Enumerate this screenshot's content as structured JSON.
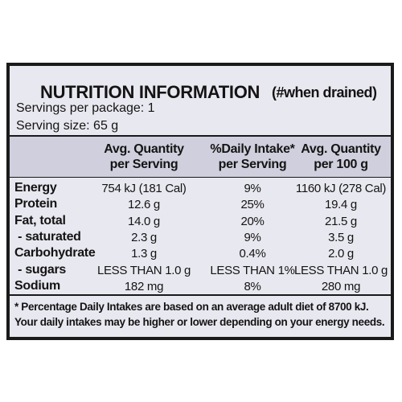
{
  "header": {
    "title": "NUTRITION INFORMATION",
    "title_note": "(#when drained)",
    "servings": "Servings per package: 1",
    "serving_size": "Serving size: 65 g"
  },
  "table": {
    "columns": [
      [
        "Avg. Quantity",
        "per Serving"
      ],
      [
        "%Daily Intake*",
        "per Serving"
      ],
      [
        "Avg. Quantity",
        "per 100 g"
      ]
    ],
    "rows": [
      [
        "Energy",
        "754 kJ (181 Cal)",
        "9%",
        "1160 kJ (278 Cal)"
      ],
      [
        "Protein",
        "12.6 g",
        "25%",
        "19.4 g"
      ],
      [
        "Fat, total",
        "14.0 g",
        "20%",
        "21.5 g"
      ],
      [
        " - saturated",
        "2.3 g",
        "9%",
        "3.5 g"
      ],
      [
        "Carbohydrate",
        "1.3 g",
        "0.4%",
        "2.0 g"
      ],
      [
        " - sugars",
        "LESS THAN 1.0 g",
        "LESS THAN 1%",
        "LESS THAN 1.0 g"
      ],
      [
        "Sodium",
        "182 mg",
        "8%",
        "280 mg"
      ]
    ]
  },
  "footnote": [
    "* Percentage Daily Intakes are based on an average adult diet of 8700 kJ.",
    "Your daily intakes may be higher or lower depending on your energy needs."
  ]
}
